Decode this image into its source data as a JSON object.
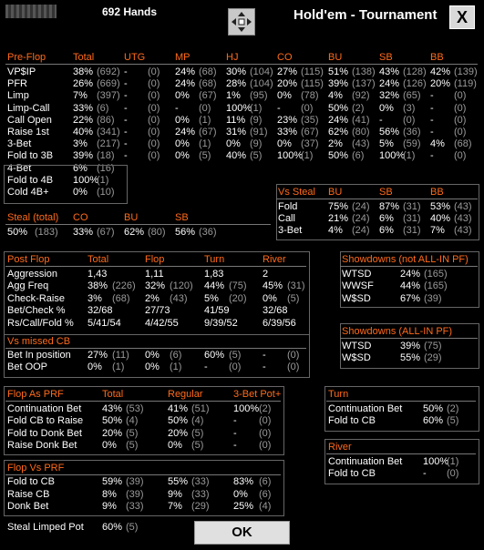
{
  "window": {
    "hands": "692 Hands",
    "title": "Hold'em - Tournament",
    "close": "X",
    "ok": "OK"
  },
  "preflop": {
    "headers": [
      "Pre-Flop",
      "Total",
      "UTG",
      "MP",
      "HJ",
      "CO",
      "BU",
      "SB",
      "BB"
    ],
    "rows": [
      [
        "VP$IP",
        "38%",
        "(692)",
        "-",
        "(0)",
        "24%",
        "(68)",
        "30%",
        "(104)",
        "27%",
        "(115)",
        "51%",
        "(138)",
        "43%",
        "(128)",
        "42%",
        "(139)"
      ],
      [
        "PFR",
        "26%",
        "(669)",
        "-",
        "(0)",
        "24%",
        "(68)",
        "28%",
        "(104)",
        "20%",
        "(115)",
        "39%",
        "(137)",
        "24%",
        "(126)",
        "20%",
        "(119)"
      ],
      [
        "Limp",
        "7%",
        "(397)",
        "-",
        "(0)",
        "0%",
        "(67)",
        "1%",
        "(95)",
        "0%",
        "(78)",
        "4%",
        "(92)",
        "32%",
        "(65)",
        "-",
        "(0)"
      ],
      [
        "Limp-Call",
        "33%",
        "(6)",
        "-",
        "(0)",
        "-",
        "(0)",
        "100%",
        "(1)",
        "-",
        "(0)",
        "50%",
        "(2)",
        "0%",
        "(3)",
        "-",
        "(0)"
      ],
      [
        "Call Open",
        "22%",
        "(86)",
        "-",
        "(0)",
        "0%",
        "(1)",
        "11%",
        "(9)",
        "23%",
        "(35)",
        "24%",
        "(41)",
        "-",
        "(0)",
        "-",
        "(0)"
      ],
      [
        "Raise 1st",
        "40%",
        "(341)",
        "-",
        "(0)",
        "24%",
        "(67)",
        "31%",
        "(91)",
        "33%",
        "(67)",
        "62%",
        "(80)",
        "56%",
        "(36)",
        "-",
        "(0)"
      ],
      [
        "3-Bet",
        "3%",
        "(217)",
        "-",
        "(0)",
        "0%",
        "(1)",
        "0%",
        "(9)",
        "0%",
        "(37)",
        "2%",
        "(43)",
        "5%",
        "(59)",
        "4%",
        "(68)"
      ],
      [
        "Fold to 3B",
        "39%",
        "(18)",
        "-",
        "(0)",
        "0%",
        "(5)",
        "40%",
        "(5)",
        "100%",
        "(1)",
        "50%",
        "(6)",
        "100%",
        "(1)",
        "-",
        "(0)"
      ],
      [
        "4-Bet",
        "6%",
        "(16)"
      ],
      [
        "Fold to 4B",
        "100%",
        "(1)"
      ],
      [
        "Cold 4B+",
        "0%",
        "(10)"
      ]
    ]
  },
  "vs_steal": {
    "headers": [
      "Vs Steal",
      "BU",
      "SB",
      "BB"
    ],
    "rows": [
      [
        "Fold",
        "75%",
        "(24)",
        "87%",
        "(31)",
        "53%",
        "(43)"
      ],
      [
        "Call",
        "21%",
        "(24)",
        "6%",
        "(31)",
        "40%",
        "(43)"
      ],
      [
        "3-Bet",
        "4%",
        "(24)",
        "6%",
        "(31)",
        "7%",
        "(43)"
      ]
    ]
  },
  "steal": {
    "headers": [
      "Steal (total)",
      "CO",
      "BU",
      "SB"
    ],
    "row": [
      "50%",
      "(183)",
      "33%",
      "(67)",
      "62%",
      "(80)",
      "56%",
      "(36)"
    ]
  },
  "postflop": {
    "headers": [
      "Post Flop",
      "Total",
      "Flop",
      "Turn",
      "River"
    ],
    "rows": [
      [
        "Aggression",
        "1,43",
        "",
        "1,11",
        "",
        "1,83",
        "",
        "2",
        ""
      ],
      [
        "Agg Freq",
        "38%",
        "(226)",
        "32%",
        "(120)",
        "44%",
        "(75)",
        "45%",
        "(31)"
      ],
      [
        "Check-Raise",
        "3%",
        "(68)",
        "2%",
        "(43)",
        "5%",
        "(20)",
        "0%",
        "(5)"
      ],
      [
        "Bet/Check %",
        "32/68",
        "",
        "27/73",
        "",
        "41/59",
        "",
        "32/68",
        ""
      ],
      [
        "Rs/Call/Fold %",
        "5/41/54",
        "",
        "4/42/55",
        "",
        "9/39/52",
        "",
        "6/39/56",
        ""
      ]
    ]
  },
  "showdowns_not_allin": {
    "header": "Showdowns (not ALL-IN PF)",
    "rows": [
      [
        "WTSD",
        "24%",
        "(165)"
      ],
      [
        "WWSF",
        "44%",
        "(165)"
      ],
      [
        "W$SD",
        "67%",
        "(39)"
      ]
    ]
  },
  "showdowns_allin": {
    "header": "Showdowns (ALL-IN PF)",
    "rows": [
      [
        "WTSD",
        "39%",
        "(75)"
      ],
      [
        "W$SD",
        "55%",
        "(29)"
      ]
    ]
  },
  "vs_missed_cb": {
    "header": "Vs missed CB",
    "rows": [
      [
        "Bet In position",
        "27%",
        "(11)",
        "0%",
        "(6)",
        "60%",
        "(5)",
        "-",
        "(0)"
      ],
      [
        "Bet OOP",
        "0%",
        "(1)",
        "0%",
        "(1)",
        "-",
        "(0)",
        "-",
        "(0)"
      ]
    ]
  },
  "flop_as_prf": {
    "headers": [
      "Flop As PRF",
      "Total",
      "Regular",
      "3-Bet Pot+"
    ],
    "rows": [
      [
        "Continuation Bet",
        "43%",
        "(53)",
        "41%",
        "(51)",
        "100%",
        "(2)"
      ],
      [
        "Fold CB to Raise",
        "50%",
        "(4)",
        "50%",
        "(4)",
        "-",
        "(0)"
      ],
      [
        "Fold to Donk Bet",
        "20%",
        "(5)",
        "20%",
        "(5)",
        "-",
        "(0)"
      ],
      [
        "Raise Donk Bet",
        "0%",
        "(5)",
        "0%",
        "(5)",
        "-",
        "(0)"
      ]
    ]
  },
  "flop_vs_prf": {
    "header": "Flop Vs PRF",
    "rows": [
      [
        "Fold to CB",
        "59%",
        "(39)",
        "55%",
        "(33)",
        "83%",
        "(6)"
      ],
      [
        "Raise CB",
        "8%",
        "(39)",
        "9%",
        "(33)",
        "0%",
        "(6)"
      ],
      [
        "Donk Bet",
        "9%",
        "(33)",
        "7%",
        "(29)",
        "25%",
        "(4)"
      ]
    ],
    "steal_limped": [
      "Steal Limped Pot",
      "60%",
      "(5)"
    ]
  },
  "turn": {
    "header": "Turn",
    "rows": [
      [
        "Continuation Bet",
        "50%",
        "(2)"
      ],
      [
        "Fold to CB",
        "60%",
        "(5)"
      ]
    ]
  },
  "river": {
    "header": "River",
    "rows": [
      [
        "Continuation Bet",
        "100%",
        "(1)"
      ],
      [
        "Fold to CB",
        "-",
        "(0)"
      ]
    ]
  }
}
